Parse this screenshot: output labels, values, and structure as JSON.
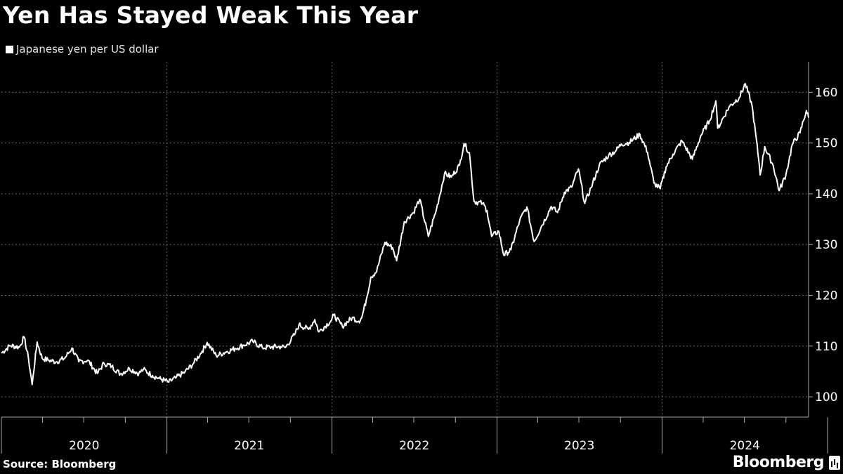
{
  "header": {
    "title": "Yen Has Stayed Weak This Year",
    "legend_label": "Japanese yen per US dollar"
  },
  "footer": {
    "source": "Source: Bloomberg",
    "brand": "Bloomberg"
  },
  "colors": {
    "background": "#000000",
    "line": "#ffffff",
    "grid": "#666666"
  },
  "chart_data": {
    "type": "line",
    "title": "Yen Has Stayed Weak This Year",
    "xlabel": "",
    "ylabel": "",
    "x_ticks": [
      "2020",
      "2021",
      "2022",
      "2023",
      "2024"
    ],
    "y_ticks": [
      100,
      110,
      120,
      130,
      140,
      150,
      160
    ],
    "ylim": [
      96,
      166
    ],
    "xlim": [
      "2020-01-01",
      "2024-11-20"
    ],
    "grid": true,
    "legend_position": "top-left",
    "series": [
      {
        "name": "Japanese yen per US dollar",
        "points": [
          [
            "2020-01-01",
            108.6
          ],
          [
            "2020-01-20",
            110.1
          ],
          [
            "2020-02-10",
            109.8
          ],
          [
            "2020-02-20",
            111.8
          ],
          [
            "2020-03-01",
            107.5
          ],
          [
            "2020-03-09",
            102.4
          ],
          [
            "2020-03-20",
            110.8
          ],
          [
            "2020-03-31",
            107.6
          ],
          [
            "2020-04-15",
            107.2
          ],
          [
            "2020-05-01",
            106.9
          ],
          [
            "2020-05-20",
            107.6
          ],
          [
            "2020-06-05",
            109.6
          ],
          [
            "2020-06-20",
            106.9
          ],
          [
            "2020-07-10",
            107.2
          ],
          [
            "2020-07-31",
            104.6
          ],
          [
            "2020-08-15",
            106.6
          ],
          [
            "2020-09-01",
            106.0
          ],
          [
            "2020-09-20",
            104.5
          ],
          [
            "2020-10-10",
            105.6
          ],
          [
            "2020-10-31",
            104.6
          ],
          [
            "2020-11-10",
            105.4
          ],
          [
            "2020-11-30",
            104.2
          ],
          [
            "2020-12-15",
            103.6
          ],
          [
            "2021-01-05",
            102.9
          ],
          [
            "2021-01-20",
            103.7
          ],
          [
            "2021-02-10",
            104.9
          ],
          [
            "2021-02-28",
            106.5
          ],
          [
            "2021-03-20",
            109.0
          ],
          [
            "2021-03-31",
            110.7
          ],
          [
            "2021-04-20",
            108.1
          ],
          [
            "2021-05-10",
            108.8
          ],
          [
            "2021-06-01",
            109.5
          ],
          [
            "2021-06-20",
            110.2
          ],
          [
            "2021-07-10",
            110.9
          ],
          [
            "2021-07-31",
            109.7
          ],
          [
            "2021-08-20",
            109.8
          ],
          [
            "2021-09-10",
            109.9
          ],
          [
            "2021-09-20",
            109.7
          ],
          [
            "2021-10-10",
            112.2
          ],
          [
            "2021-10-20",
            114.2
          ],
          [
            "2021-11-10",
            113.3
          ],
          [
            "2021-11-24",
            115.2
          ],
          [
            "2021-12-03",
            112.8
          ],
          [
            "2021-12-31",
            115.1
          ],
          [
            "2022-01-05",
            116.1
          ],
          [
            "2022-01-24",
            113.9
          ],
          [
            "2022-02-15",
            115.6
          ],
          [
            "2022-03-01",
            114.9
          ],
          [
            "2022-03-08",
            115.6
          ],
          [
            "2022-03-18",
            119.2
          ],
          [
            "2022-03-28",
            123.6
          ],
          [
            "2022-04-10",
            124.8
          ],
          [
            "2022-04-28",
            130.4
          ],
          [
            "2022-05-15",
            129.4
          ],
          [
            "2022-05-24",
            126.8
          ],
          [
            "2022-06-10",
            134.5
          ],
          [
            "2022-06-30",
            136.3
          ],
          [
            "2022-07-14",
            138.9
          ],
          [
            "2022-08-02",
            131.6
          ],
          [
            "2022-08-20",
            136.9
          ],
          [
            "2022-09-07",
            144.0
          ],
          [
            "2022-09-22",
            143.3
          ],
          [
            "2022-10-10",
            145.6
          ],
          [
            "2022-10-20",
            149.9
          ],
          [
            "2022-11-01",
            148.1
          ],
          [
            "2022-11-11",
            138.5
          ],
          [
            "2022-11-30",
            138.1
          ],
          [
            "2022-12-10",
            136.7
          ],
          [
            "2022-12-20",
            131.6
          ],
          [
            "2023-01-05",
            132.6
          ],
          [
            "2023-01-16",
            127.9
          ],
          [
            "2023-02-01",
            129.0
          ],
          [
            "2023-02-20",
            134.7
          ],
          [
            "2023-03-08",
            137.4
          ],
          [
            "2023-03-24",
            130.6
          ],
          [
            "2023-04-10",
            133.7
          ],
          [
            "2023-05-01",
            137.5
          ],
          [
            "2023-05-15",
            136.3
          ],
          [
            "2023-05-30",
            140.3
          ],
          [
            "2023-06-15",
            141.3
          ],
          [
            "2023-06-30",
            144.9
          ],
          [
            "2023-07-14",
            138.1
          ],
          [
            "2023-07-28",
            141.2
          ],
          [
            "2023-08-15",
            145.6
          ],
          [
            "2023-09-05",
            147.6
          ],
          [
            "2023-09-20",
            148.4
          ],
          [
            "2023-10-03",
            149.8
          ],
          [
            "2023-10-20",
            150.1
          ],
          [
            "2023-11-13",
            151.7
          ],
          [
            "2023-11-30",
            148.2
          ],
          [
            "2023-12-14",
            142.1
          ],
          [
            "2023-12-28",
            141.0
          ],
          [
            "2024-01-10",
            145.3
          ],
          [
            "2024-01-25",
            147.8
          ],
          [
            "2024-02-14",
            150.4
          ],
          [
            "2024-03-08",
            146.8
          ],
          [
            "2024-03-27",
            151.5
          ],
          [
            "2024-04-15",
            154.4
          ],
          [
            "2024-04-29",
            158.3
          ],
          [
            "2024-05-03",
            152.9
          ],
          [
            "2024-05-28",
            157.1
          ],
          [
            "2024-06-20",
            159.0
          ],
          [
            "2024-07-03",
            161.7
          ],
          [
            "2024-07-18",
            157.4
          ],
          [
            "2024-08-02",
            146.5
          ],
          [
            "2024-08-05",
            143.7
          ],
          [
            "2024-08-15",
            149.3
          ],
          [
            "2024-09-03",
            145.5
          ],
          [
            "2024-09-16",
            140.6
          ],
          [
            "2024-10-01",
            143.8
          ],
          [
            "2024-10-15",
            149.7
          ],
          [
            "2024-11-01",
            152.0
          ],
          [
            "2024-11-15",
            156.4
          ],
          [
            "2024-11-20",
            155.0
          ]
        ]
      }
    ]
  }
}
